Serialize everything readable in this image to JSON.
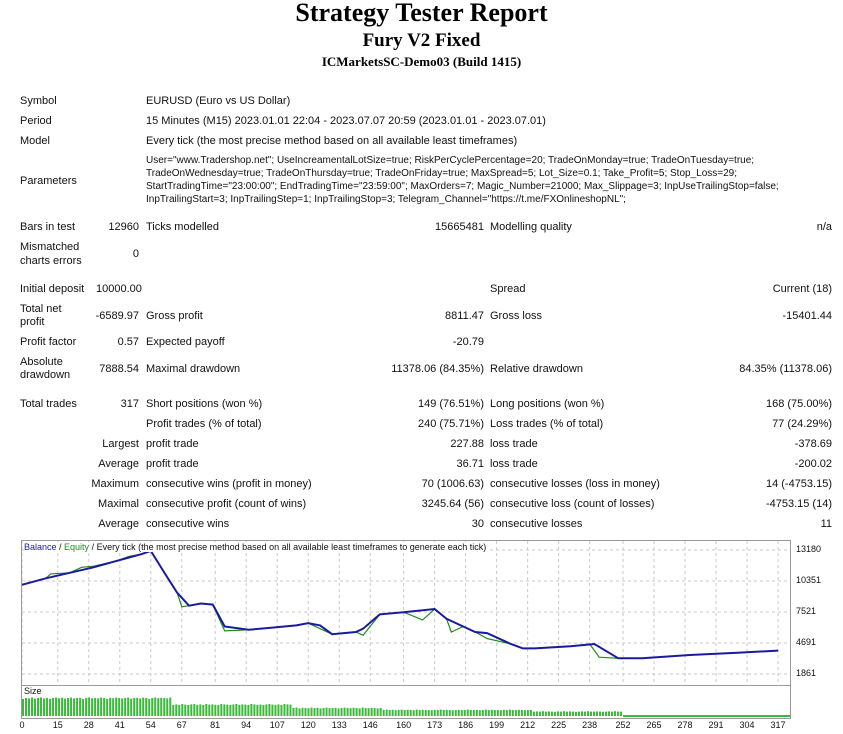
{
  "header": {
    "title": "Strategy Tester Report",
    "subtitle": "Fury V2 Fixed",
    "server": "ICMarketsSC-Demo03 (Build 1415)"
  },
  "info": {
    "symbol_label": "Symbol",
    "symbol_value": "EURUSD (Euro vs US Dollar)",
    "period_label": "Period",
    "period_value": "15 Minutes (M15) 2023.01.01 22:04 - 2023.07.07 20:59 (2023.01.01 - 2023.07.01)",
    "model_label": "Model",
    "model_value": "Every tick (the most precise method based on all available least timeframes)",
    "parameters_label": "Parameters",
    "parameters_lines": [
      "User=\"www.Tradershop.net\"; UseIncreamentalLotSize=true; RiskPerCyclePercentage=20; TradeOnMonday=true; TradeOnTuesday=true;",
      "TradeOnWednesday=true; TradeOnThursday=true; TradeOnFriday=true; MaxSpread=5; Lot_Size=0.1; Take_Profit=5; Stop_Loss=29;",
      "StartTradingTime=\"23:00:00\"; EndTradingTime=\"23:59:00\"; MaxOrders=7; Magic_Number=21000; Max_Slippage=3; InpUseTrailingStop=false;",
      "InpTrailingStart=3; InpTrailingStep=1; InpTrailingStop=3; Telegram_Channel=\"https://t.me/FXOnlineshopNL\";"
    ]
  },
  "tests": {
    "bars_label": "Bars in test",
    "bars_value": "12960",
    "ticks_label": "Ticks modelled",
    "ticks_value": "15665481",
    "quality_label": "Modelling quality",
    "quality_value": "n/a",
    "mismatched_label_1": "Mismatched",
    "mismatched_label_2": "charts errors",
    "mismatched_value": "0"
  },
  "results": {
    "initial_deposit_label": "Initial deposit",
    "initial_deposit_value": "10000.00",
    "spread_label": "Spread",
    "spread_value": "Current (18)",
    "total_net_label_1": "Total net",
    "total_net_label_2": "profit",
    "total_net_value": "-6589.97",
    "gross_profit_label": "Gross profit",
    "gross_profit_value": "8811.47",
    "gross_loss_label": "Gross loss",
    "gross_loss_value": "-15401.44",
    "profit_factor_label": "Profit factor",
    "profit_factor_value": "0.57",
    "expected_payoff_label": "Expected payoff",
    "expected_payoff_value": "-20.79",
    "absolute_dd_label_1": "Absolute",
    "absolute_dd_label_2": "drawdown",
    "absolute_dd_value": "7888.54",
    "maximal_dd_label": "Maximal drawdown",
    "maximal_dd_value": "11378.06 (84.35%)",
    "relative_dd_label": "Relative drawdown",
    "relative_dd_value": "84.35% (11378.06)"
  },
  "trades": {
    "total_trades_label": "Total trades",
    "total_trades_value": "317",
    "short_label": "Short positions (won %)",
    "short_value": "149 (76.51%)",
    "long_label": "Long positions (won %)",
    "long_value": "168 (75.00%)",
    "profit_trades_label": "Profit trades (% of total)",
    "profit_trades_value": "240 (75.71%)",
    "loss_trades_label": "Loss trades (% of total)",
    "loss_trades_value": "77 (24.29%)",
    "largest_label": "Largest",
    "largest_profit_label": "profit trade",
    "largest_profit_value": "227.88",
    "largest_loss_label": "loss trade",
    "largest_loss_value": "-378.69",
    "average_label": "Average",
    "average_profit_label": "profit trade",
    "average_profit_value": "36.71",
    "average_loss_label": "loss trade",
    "average_loss_value": "-200.02",
    "maximum_label": "Maximum",
    "max_cons_wins_label": "consecutive wins (profit in money)",
    "max_cons_wins_value": "70 (1006.63)",
    "max_cons_losses_label": "consecutive losses (loss in money)",
    "max_cons_losses_value": "14 (-4753.15)",
    "maximal_label": "Maximal",
    "maximal_cons_profit_label": "consecutive profit (count of wins)",
    "maximal_cons_profit_value": "3245.64 (56)",
    "maximal_cons_loss_label": "consecutive loss (count of losses)",
    "maximal_cons_loss_value": "-4753.15 (14)",
    "average2_label": "Average",
    "avg_cons_wins_label": "consecutive wins",
    "avg_cons_wins_value": "30",
    "avg_cons_losses_label": "consecutive losses",
    "avg_cons_losses_value": "11"
  },
  "chart_data": {
    "type": "line",
    "legend": {
      "balance": "Balance",
      "sep1": " / ",
      "equity": "Equity",
      "rest": " / Every tick (the most precise method based on all available least timeframes to generate each tick)"
    },
    "size_label": "Size",
    "ylim": [
      861,
      14000
    ],
    "y_ticks": [
      13180,
      10351,
      7521,
      4691,
      1861
    ],
    "xlim": [
      0,
      322
    ],
    "x_ticks": [
      0,
      15,
      28,
      41,
      54,
      67,
      81,
      94,
      107,
      120,
      133,
      146,
      160,
      173,
      186,
      199,
      212,
      225,
      238,
      252,
      265,
      278,
      291,
      304,
      317
    ],
    "colors": {
      "balance": "#1a1aa0",
      "equity": "#1f8a1f",
      "size": "#3cb83c",
      "grid": "#c8c8c8"
    },
    "series": [
      {
        "name": "Balance",
        "x": [
          0,
          10,
          20,
          30,
          40,
          50,
          54,
          60,
          65,
          70,
          75,
          80,
          85,
          95,
          105,
          115,
          120,
          125,
          130,
          140,
          143,
          150,
          160,
          173,
          178,
          185,
          190,
          195,
          205,
          210,
          215,
          230,
          240,
          250,
          260,
          280,
          300,
          317
        ],
        "y": [
          10000,
          10600,
          11100,
          11600,
          12200,
          12800,
          13100,
          11000,
          9300,
          8100,
          8300,
          8200,
          6200,
          5900,
          6100,
          6300,
          6500,
          6300,
          5500,
          5700,
          6000,
          7300,
          7500,
          7800,
          6900,
          6200,
          5700,
          5600,
          4600,
          4200,
          4200,
          4400,
          4600,
          3300,
          3300,
          3600,
          3800,
          4000
        ]
      },
      {
        "name": "Equity",
        "x": [
          0,
          10,
          12,
          20,
          25,
          30,
          40,
          45,
          50,
          54,
          60,
          65,
          67,
          70,
          75,
          80,
          85,
          95,
          105,
          115,
          120,
          125,
          130,
          140,
          143,
          150,
          160,
          168,
          173,
          178,
          180,
          185,
          190,
          195,
          205,
          210,
          215,
          230,
          238,
          242,
          250,
          260,
          280,
          300,
          317
        ],
        "y": [
          10000,
          10600,
          11000,
          11100,
          11600,
          11700,
          12200,
          12600,
          12800,
          13100,
          11000,
          9300,
          8000,
          8100,
          8300,
          8200,
          5800,
          5900,
          6100,
          6300,
          6500,
          6000,
          5500,
          5700,
          5400,
          7300,
          7500,
          6800,
          7800,
          6900,
          5700,
          6200,
          5700,
          5100,
          4600,
          4200,
          4200,
          4400,
          4600,
          3400,
          3300,
          3300,
          3600,
          3800,
          4000
        ]
      }
    ],
    "size_values": [
      0.85,
      0.9,
      0.88,
      0.92,
      0.87,
      0.9,
      0.93,
      0.88,
      0.9,
      0.86,
      0.9,
      0.92,
      0.89,
      0.91,
      0.87,
      0.9,
      0.92,
      0.88,
      0.9,
      0.91,
      0.85,
      0.9,
      0.93,
      0.89,
      0.9,
      0.88,
      0.92,
      0.9,
      0.86,
      0.91,
      0.89,
      0.92,
      0.9,
      0.88,
      0.9,
      0.92,
      0.87,
      0.9,
      0.91,
      0.88,
      0.92,
      0.9,
      0.86,
      0.9,
      0.92,
      0.89,
      0.91,
      0.9,
      0.88,
      0.92,
      0.55,
      0.58,
      0.56,
      0.6,
      0.57,
      0.55,
      0.58,
      0.6,
      0.56,
      0.58,
      0.55,
      0.6,
      0.57,
      0.58,
      0.56,
      0.55,
      0.6,
      0.58,
      0.57,
      0.55,
      0.58,
      0.6,
      0.56,
      0.58,
      0.57,
      0.55,
      0.6,
      0.58,
      0.56,
      0.57,
      0.55,
      0.58,
      0.6,
      0.57,
      0.56,
      0.58,
      0.55,
      0.6,
      0.58,
      0.57,
      0.4,
      0.42,
      0.38,
      0.41,
      0.4,
      0.39,
      0.42,
      0.4,
      0.41,
      0.38,
      0.4,
      0.42,
      0.39,
      0.4,
      0.41,
      0.38,
      0.4,
      0.42,
      0.4,
      0.39,
      0.41,
      0.4,
      0.38,
      0.42,
      0.4,
      0.39,
      0.41,
      0.4,
      0.38,
      0.4,
      0.3,
      0.32,
      0.3,
      0.31,
      0.29,
      0.3,
      0.32,
      0.3,
      0.31,
      0.3,
      0.29,
      0.32,
      0.3,
      0.31,
      0.3,
      0.3,
      0.29,
      0.31,
      0.3,
      0.32,
      0.3,
      0.31,
      0.3,
      0.29,
      0.3,
      0.31,
      0.3,
      0.3,
      0.32,
      0.3,
      0.3,
      0.31,
      0.29,
      0.3,
      0.32,
      0.3,
      0.31,
      0.3,
      0.3,
      0.29,
      0.31,
      0.3,
      0.32,
      0.3,
      0.3,
      0.31,
      0.3,
      0.29,
      0.3,
      0.3,
      0.22,
      0.23,
      0.22,
      0.24,
      0.22,
      0.23,
      0.22,
      0.21,
      0.23,
      0.22,
      0.24,
      0.22,
      0.23,
      0.22,
      0.21,
      0.22,
      0.23,
      0.22,
      0.24,
      0.22,
      0.22,
      0.23,
      0.22,
      0.21,
      0.22,
      0.23,
      0.22,
      0.24,
      0.22,
      0.22
    ]
  }
}
